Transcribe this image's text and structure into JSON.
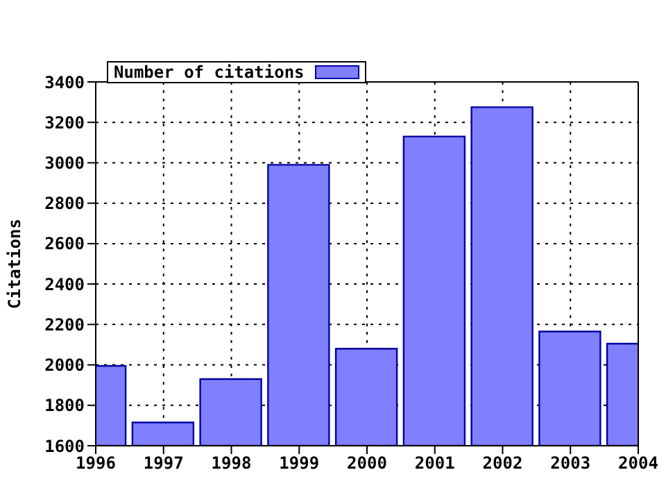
{
  "chart_data": {
    "type": "bar",
    "ylabel": "Citations",
    "x": [
      1996,
      1997,
      1998,
      1999,
      2000,
      2001,
      2002,
      2003,
      2004
    ],
    "series": [
      {
        "name": "Number of citations",
        "color": "#8080ff",
        "values": [
          1995,
          1715,
          1930,
          2990,
          2080,
          3130,
          3275,
          2165,
          2105
        ]
      }
    ],
    "xlim": [
      1996,
      2004
    ],
    "xticks": [
      1996,
      1997,
      1998,
      1999,
      2000,
      2001,
      2002,
      2003,
      2004
    ],
    "ylim": [
      1600,
      3400
    ],
    "yticks": [
      1600,
      1800,
      2000,
      2200,
      2400,
      2600,
      2800,
      3000,
      3200,
      3400
    ],
    "grid": true,
    "legend": "top left"
  }
}
